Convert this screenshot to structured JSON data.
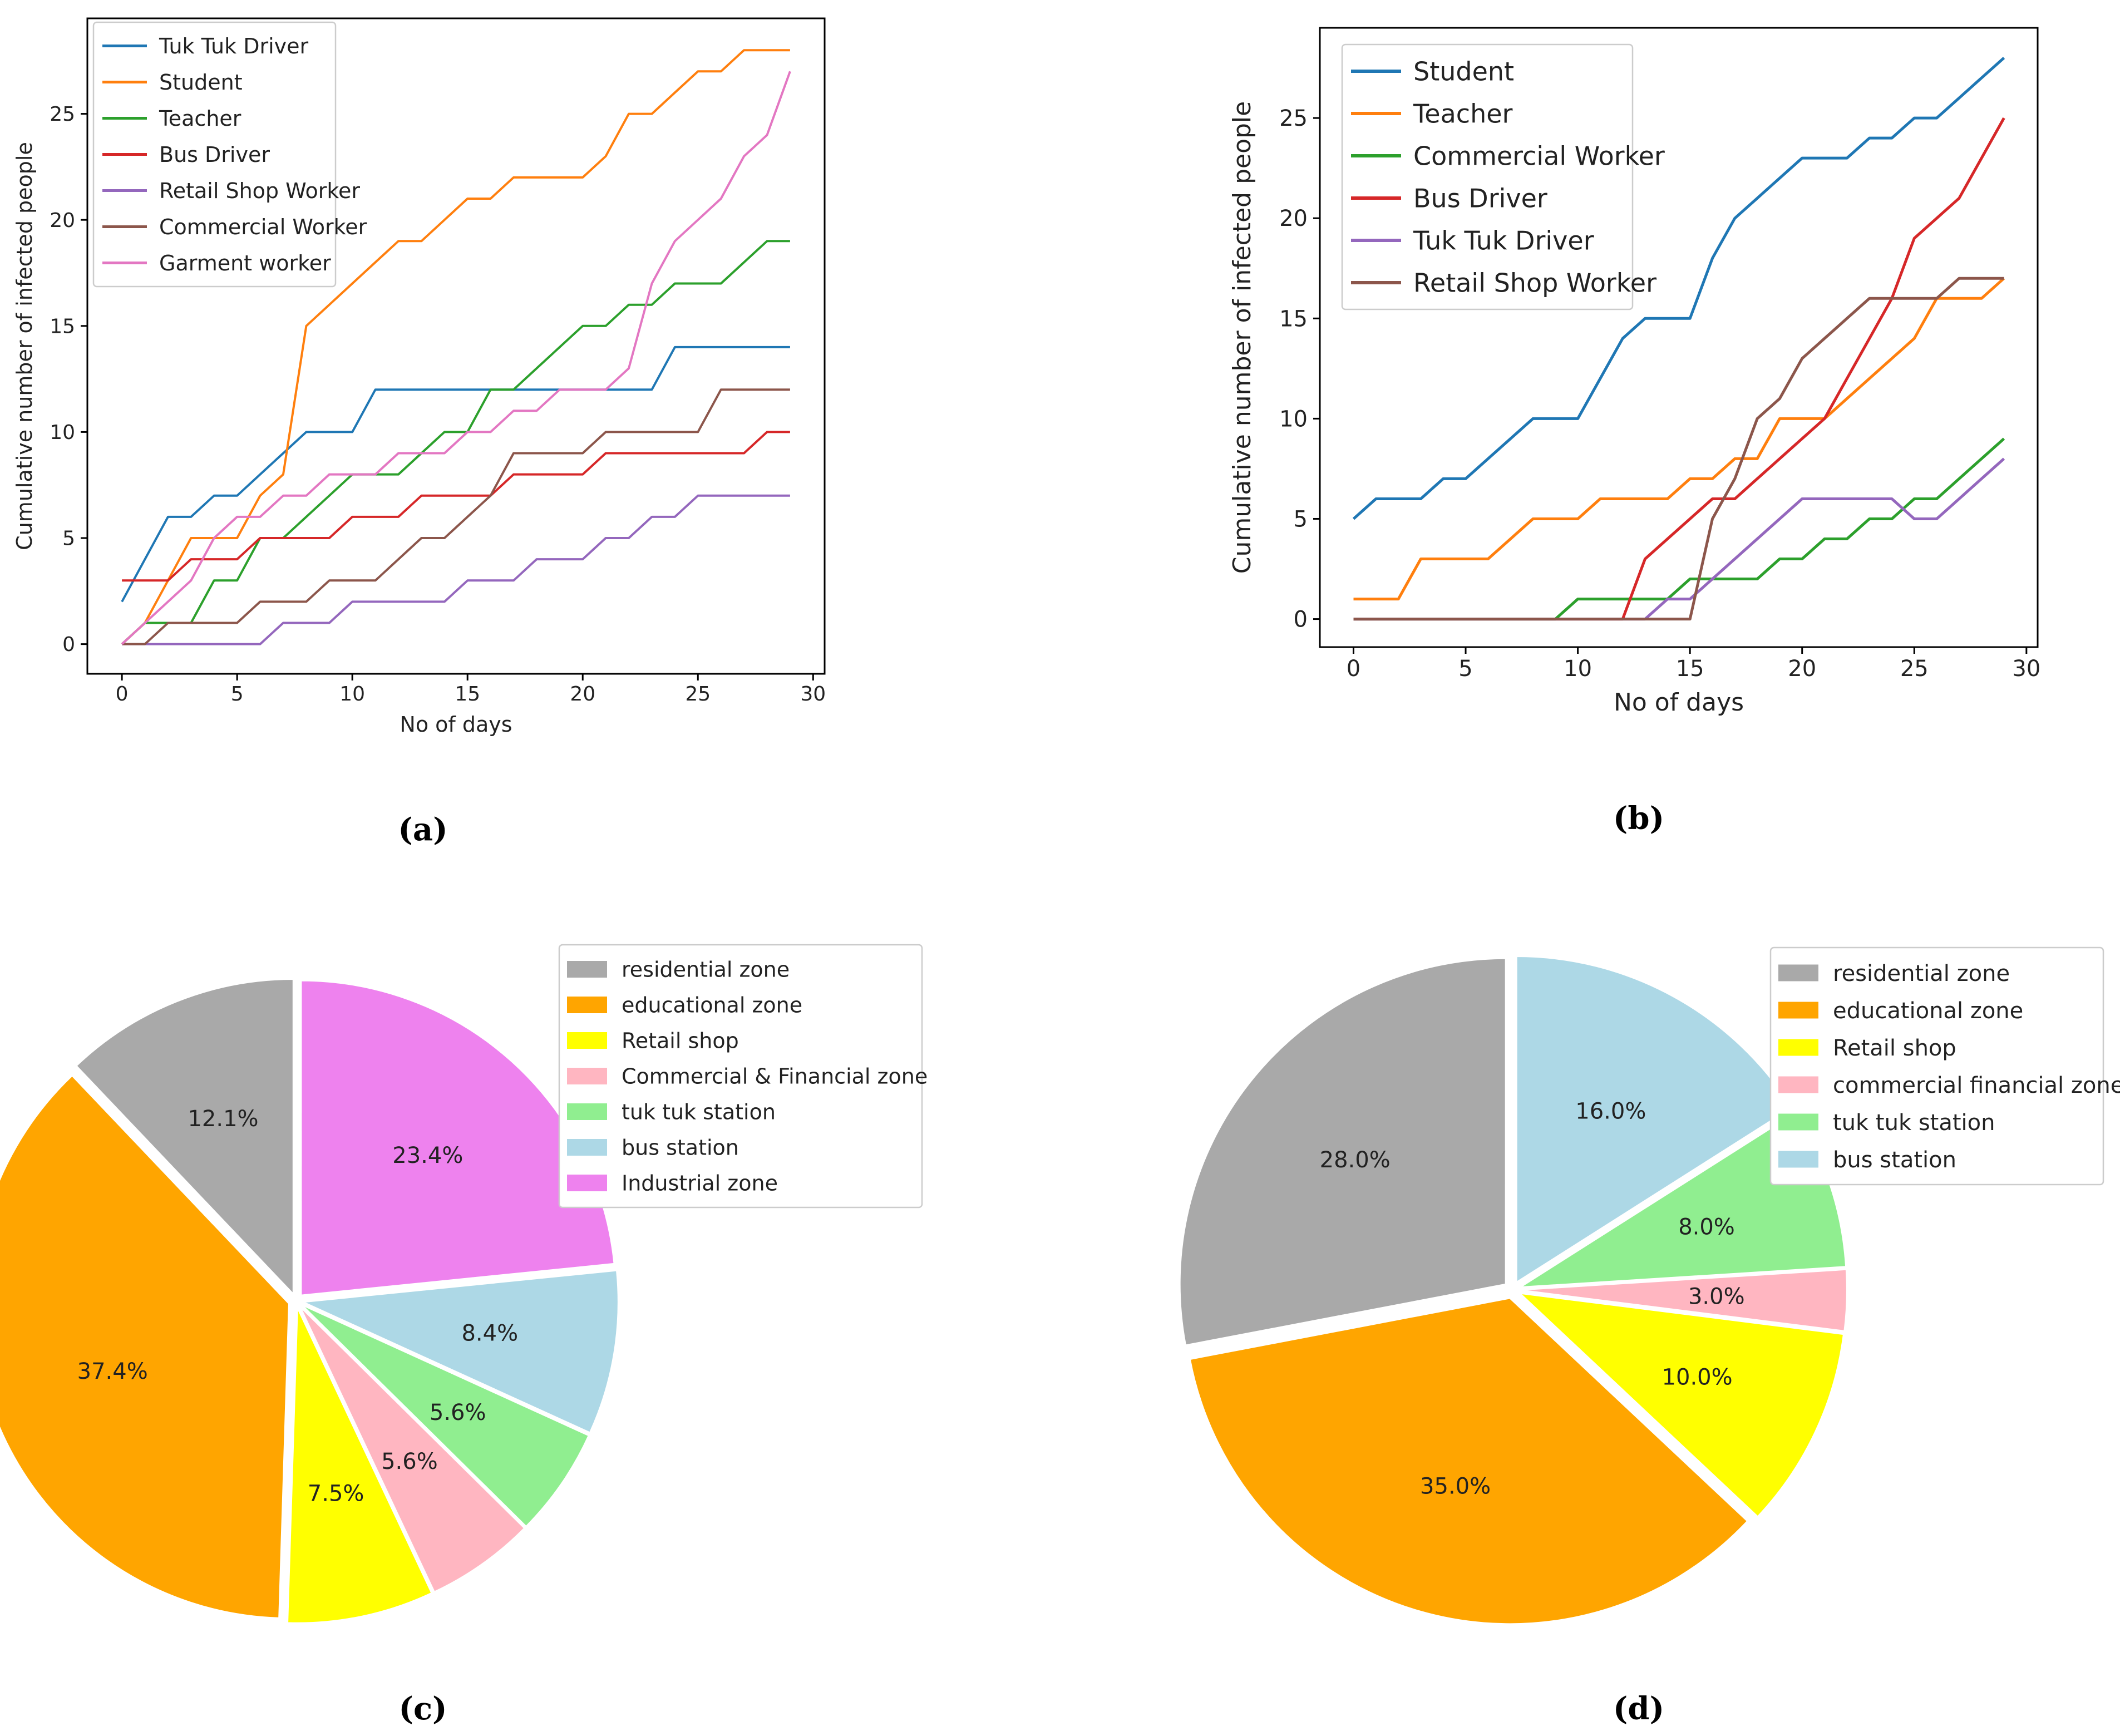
{
  "chart_data": [
    {
      "type": "line",
      "panel_label": "(a)",
      "xlabel": "No of days",
      "ylabel": "Cumulative number of infected people",
      "xlim": [
        -1.5,
        30.5
      ],
      "ylim": [
        -1.4,
        29.5
      ],
      "xticks": [
        0,
        5,
        10,
        15,
        20,
        25,
        30
      ],
      "yticks": [
        0,
        5,
        10,
        15,
        20,
        25
      ],
      "legend_position": "upper-left",
      "series": [
        {
          "name": "Tuk Tuk Driver",
          "color": "#1f77b4",
          "values": [
            2,
            4,
            6,
            6,
            7,
            7,
            8,
            9,
            10,
            10,
            10,
            12,
            12,
            12,
            12,
            12,
            12,
            12,
            12,
            12,
            12,
            12,
            12,
            12,
            14,
            14,
            14,
            14,
            14,
            14
          ]
        },
        {
          "name": "Student",
          "color": "#ff7f0e",
          "values": [
            0,
            1,
            3,
            5,
            5,
            5,
            7,
            8,
            15,
            16,
            17,
            18,
            19,
            19,
            20,
            21,
            21,
            22,
            22,
            22,
            22,
            23,
            25,
            25,
            26,
            27,
            27,
            28,
            28,
            28
          ]
        },
        {
          "name": "Teacher",
          "color": "#2ca02c",
          "values": [
            0,
            1,
            1,
            1,
            3,
            3,
            5,
            5,
            6,
            7,
            8,
            8,
            8,
            9,
            10,
            10,
            12,
            12,
            13,
            14,
            15,
            15,
            16,
            16,
            17,
            17,
            17,
            18,
            19,
            19
          ]
        },
        {
          "name": "Bus Driver",
          "color": "#d62728",
          "values": [
            3,
            3,
            3,
            4,
            4,
            4,
            5,
            5,
            5,
            5,
            6,
            6,
            6,
            7,
            7,
            7,
            7,
            8,
            8,
            8,
            8,
            9,
            9,
            9,
            9,
            9,
            9,
            9,
            10,
            10
          ]
        },
        {
          "name": "Retail Shop Worker",
          "color": "#9467bd",
          "values": [
            0,
            0,
            0,
            0,
            0,
            0,
            0,
            1,
            1,
            1,
            2,
            2,
            2,
            2,
            2,
            3,
            3,
            3,
            4,
            4,
            4,
            5,
            5,
            6,
            6,
            7,
            7,
            7,
            7,
            7
          ]
        },
        {
          "name": "Commercial Worker",
          "color": "#8c564b",
          "values": [
            0,
            0,
            1,
            1,
            1,
            1,
            2,
            2,
            2,
            3,
            3,
            3,
            4,
            5,
            5,
            6,
            7,
            9,
            9,
            9,
            9,
            10,
            10,
            10,
            10,
            10,
            12,
            12,
            12,
            12
          ]
        },
        {
          "name": "Garment worker",
          "color": "#e377c2",
          "values": [
            0,
            1,
            2,
            3,
            5,
            6,
            6,
            7,
            7,
            8,
            8,
            8,
            9,
            9,
            9,
            10,
            10,
            11,
            11,
            12,
            12,
            12,
            13,
            17,
            19,
            20,
            21,
            23,
            24,
            27
          ]
        }
      ]
    },
    {
      "type": "line",
      "panel_label": "(b)",
      "xlabel": "No of days",
      "ylabel": "Cumulative number of infected people",
      "xlim": [
        -1.5,
        30.5
      ],
      "ylim": [
        -1.4,
        29.5
      ],
      "xticks": [
        0,
        5,
        10,
        15,
        20,
        25,
        30
      ],
      "yticks": [
        0,
        5,
        10,
        15,
        20,
        25
      ],
      "legend_position": "upper-left",
      "series": [
        {
          "name": "Student",
          "color": "#1f77b4",
          "values": [
            5,
            6,
            6,
            6,
            7,
            7,
            8,
            9,
            10,
            10,
            10,
            12,
            14,
            15,
            15,
            15,
            18,
            20,
            21,
            22,
            23,
            23,
            23,
            24,
            24,
            25,
            25,
            26,
            27,
            28
          ]
        },
        {
          "name": "Teacher",
          "color": "#ff7f0e",
          "values": [
            1,
            1,
            1,
            3,
            3,
            3,
            3,
            4,
            5,
            5,
            5,
            6,
            6,
            6,
            6,
            7,
            7,
            8,
            8,
            10,
            10,
            10,
            11,
            12,
            13,
            14,
            16,
            16,
            16,
            17
          ]
        },
        {
          "name": "Commercial Worker",
          "color": "#2ca02c",
          "values": [
            0,
            0,
            0,
            0,
            0,
            0,
            0,
            0,
            0,
            0,
            1,
            1,
            1,
            1,
            1,
            2,
            2,
            2,
            2,
            3,
            3,
            4,
            4,
            5,
            5,
            6,
            6,
            7,
            8,
            9
          ]
        },
        {
          "name": "Bus Driver",
          "color": "#d62728",
          "values": [
            0,
            0,
            0,
            0,
            0,
            0,
            0,
            0,
            0,
            0,
            0,
            0,
            0,
            3,
            4,
            5,
            6,
            6,
            7,
            8,
            9,
            10,
            12,
            14,
            16,
            19,
            20,
            21,
            23,
            25
          ]
        },
        {
          "name": "Tuk Tuk Driver",
          "color": "#9467bd",
          "values": [
            0,
            0,
            0,
            0,
            0,
            0,
            0,
            0,
            0,
            0,
            0,
            0,
            0,
            0,
            1,
            1,
            2,
            3,
            4,
            5,
            6,
            6,
            6,
            6,
            6,
            5,
            5,
            6,
            7,
            8
          ]
        },
        {
          "name": "Retail Shop Worker",
          "color": "#8c564b",
          "values": [
            0,
            0,
            0,
            0,
            0,
            0,
            0,
            0,
            0,
            0,
            0,
            0,
            0,
            0,
            0,
            0,
            5,
            7,
            10,
            11,
            13,
            14,
            15,
            16,
            16,
            16,
            16,
            17,
            17,
            17
          ]
        }
      ]
    },
    {
      "type": "pie",
      "panel_label": "(c)",
      "legend_position": "upper-right",
      "slices": [
        {
          "label": "residential zone",
          "value": 12.1,
          "pct_text": "12.1%",
          "color": "#a9a9a9"
        },
        {
          "label": "educational zone",
          "value": 37.4,
          "pct_text": "37.4%",
          "color": "#ffa500"
        },
        {
          "label": "Retail shop",
          "value": 7.5,
          "pct_text": "7.5%",
          "color": "#ffff00"
        },
        {
          "label": "Commercial & Financial zone",
          "value": 5.6,
          "pct_text": "5.6%",
          "color": "#ffb6c1"
        },
        {
          "label": "tuk tuk station",
          "value": 5.6,
          "pct_text": "5.6%",
          "color": "#90ee90"
        },
        {
          "label": "bus station",
          "value": 8.4,
          "pct_text": "8.4%",
          "color": "#add8e6"
        },
        {
          "label": "Industrial  zone",
          "value": 23.4,
          "pct_text": "23.4%",
          "color": "#ee82ee"
        }
      ]
    },
    {
      "type": "pie",
      "panel_label": "(d)",
      "legend_position": "upper-right",
      "slices": [
        {
          "label": "residential zone",
          "value": 28.0,
          "pct_text": "28.0%",
          "color": "#a9a9a9"
        },
        {
          "label": "educational zone",
          "value": 35.0,
          "pct_text": "35.0%",
          "color": "#ffa500"
        },
        {
          "label": "Retail shop",
          "value": 10.0,
          "pct_text": "10.0%",
          "color": "#ffff00"
        },
        {
          "label": "commercial financial zone",
          "value": 3.0,
          "pct_text": "3.0%",
          "color": "#ffb6c1"
        },
        {
          "label": "tuk tuk station",
          "value": 8.0,
          "pct_text": "8.0%",
          "color": "#90ee90"
        },
        {
          "label": "bus station",
          "value": 16.0,
          "pct_text": "16.0%",
          "color": "#add8e6"
        }
      ]
    }
  ]
}
